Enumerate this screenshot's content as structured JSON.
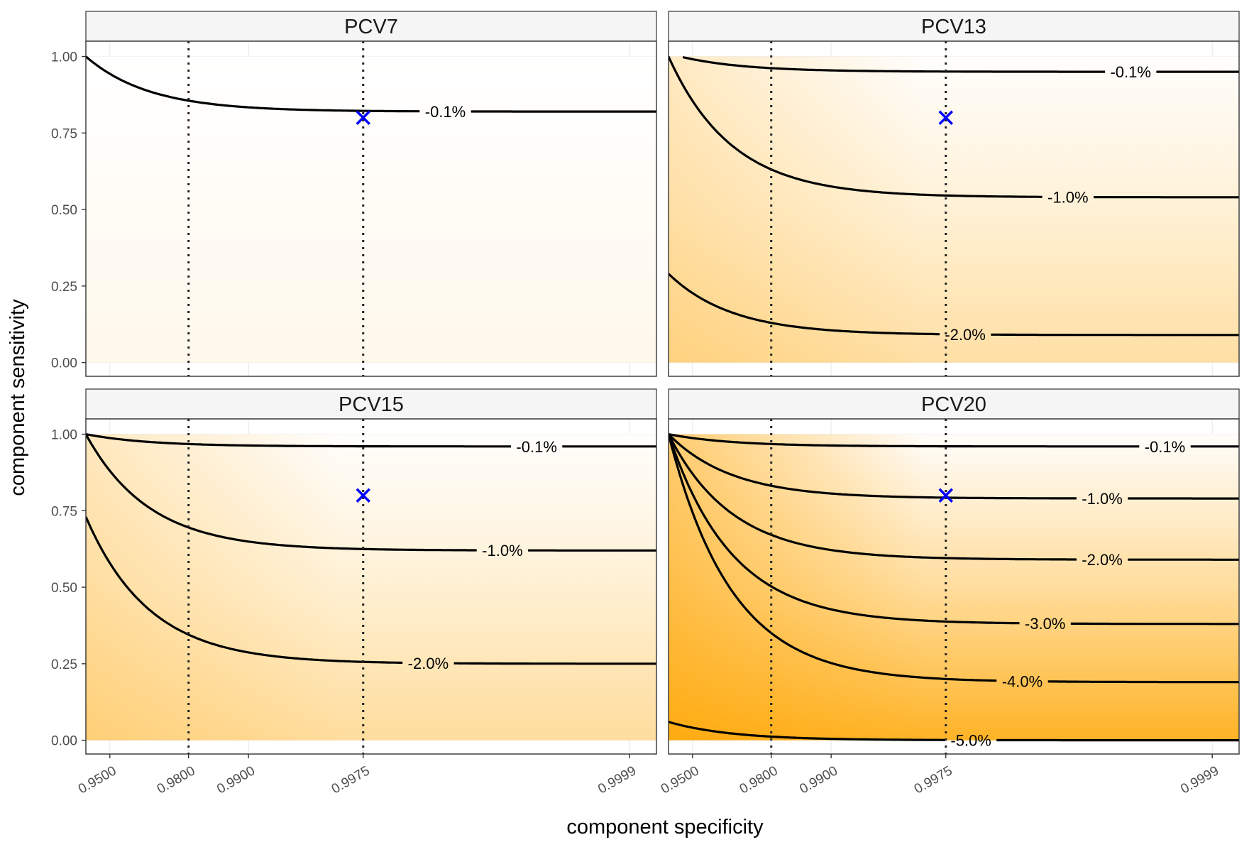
{
  "chart_data": {
    "type": "heatmap",
    "facet_layout": "2x2",
    "xlabel": "component specificity",
    "ylabel": "component sensitivity",
    "x_ticks": [
      "0.9500",
      "0.9800",
      "0.9900",
      "0.9975",
      "0.9999"
    ],
    "y_ticks": [
      "0.00",
      "0.25",
      "0.50",
      "0.75",
      "1.00"
    ],
    "reference_lines": [
      "0.9800",
      "0.9975"
    ],
    "marker": {
      "specificity": "0.9975",
      "sensitivity": 0.8,
      "symbol": "x",
      "color": "#0000ff"
    },
    "fill_color_low": "#ffffff",
    "fill_color_high": "#ffa500",
    "panels": [
      {
        "name": "PCV7",
        "max_shading": 0.08,
        "contours": [
          {
            "label": "-0.1%",
            "a": 0.82,
            "A": 0.18,
            "label_x": 0.63
          }
        ]
      },
      {
        "name": "PCV13",
        "max_shading": 0.42,
        "contours": [
          {
            "label": "-0.1%",
            "a": 0.95,
            "A": 0.06,
            "label_x": 0.81
          },
          {
            "label": "-1.0%",
            "a": 0.54,
            "A": 0.46,
            "label_x": 0.7
          },
          {
            "label": "-2.0%",
            "a": 0.09,
            "A": 0.2,
            "label_x": 0.52
          }
        ]
      },
      {
        "name": "PCV15",
        "max_shading": 0.45,
        "contours": [
          {
            "label": "-0.1%",
            "a": 0.96,
            "A": 0.04,
            "label_x": 0.79
          },
          {
            "label": "-1.0%",
            "a": 0.62,
            "A": 0.38,
            "label_x": 0.73
          },
          {
            "label": "-2.0%",
            "a": 0.25,
            "A": 0.48,
            "label_x": 0.6
          }
        ]
      },
      {
        "name": "PCV20",
        "max_shading": 1.0,
        "contours": [
          {
            "label": "-0.1%",
            "a": 0.96,
            "A": 0.04,
            "label_x": 0.87
          },
          {
            "label": "-1.0%",
            "a": 0.79,
            "A": 0.21,
            "label_x": 0.76
          },
          {
            "label": "-2.0%",
            "a": 0.59,
            "A": 0.41,
            "label_x": 0.76
          },
          {
            "label": "-3.0%",
            "a": 0.38,
            "A": 0.62,
            "label_x": 0.66
          },
          {
            "label": "-4.0%",
            "a": 0.19,
            "A": 0.81,
            "label_x": 0.62
          },
          {
            "label": "-5.0%",
            "a": 0.0,
            "A": 0.06,
            "label_x": 0.53
          }
        ]
      }
    ]
  }
}
